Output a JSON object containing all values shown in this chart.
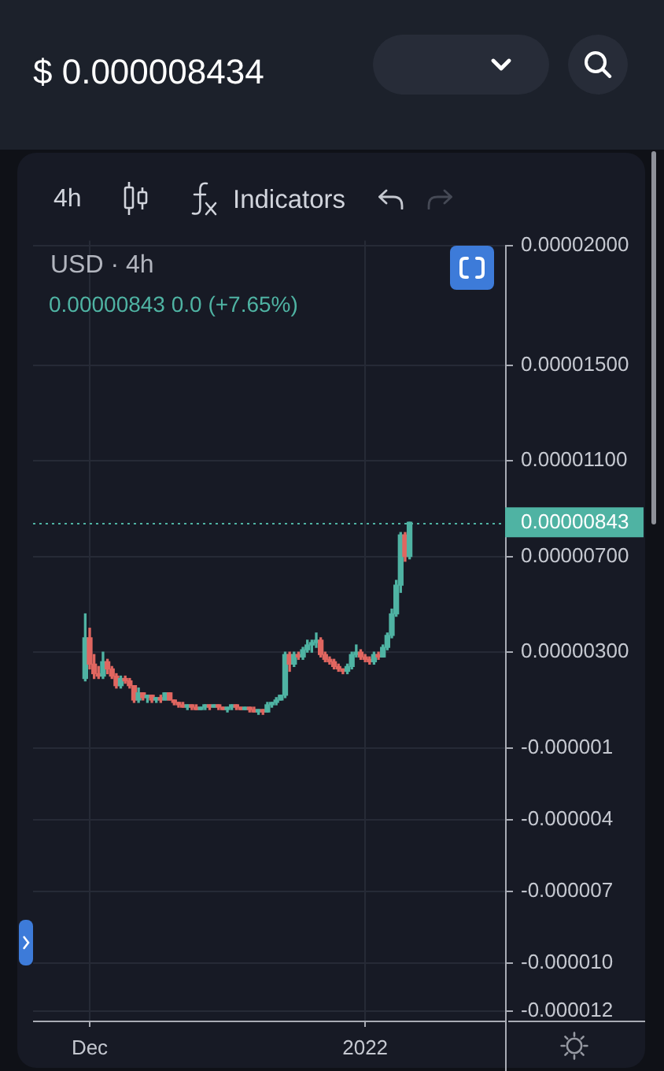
{
  "chart_data": {
    "type": "candlestick",
    "title": "$ 0.000008434",
    "subtitle": "USD · 4h",
    "annotations": [
      "4h",
      "Indicators",
      "0.00000843 0.0 (+7.65%)"
    ],
    "x": [
      "2021-11-30T12:00",
      "2021-12-01T00:00",
      "2021-12-01T12:00",
      "2021-12-02T00:00",
      "2021-12-02T12:00",
      "2021-12-03T00:00",
      "2021-12-03T12:00",
      "2021-12-04T00:00",
      "2021-12-04T12:00",
      "2021-12-05T00:00",
      "2021-12-05T12:00",
      "2021-12-06T00:00",
      "2021-12-06T12:00",
      "2021-12-07T00:00",
      "2021-12-07T12:00",
      "2021-12-08T00:00",
      "2021-12-08T12:00",
      "2021-12-09T00:00",
      "2021-12-09T12:00",
      "2021-12-10T00:00",
      "2021-12-10T12:00",
      "2021-12-11T00:00",
      "2021-12-11T12:00",
      "2021-12-12T00:00",
      "2021-12-12T12:00",
      "2021-12-13T00:00",
      "2021-12-13T12:00",
      "2021-12-14T00:00",
      "2021-12-14T12:00",
      "2021-12-15T00:00",
      "2021-12-15T12:00",
      "2021-12-16T00:00",
      "2021-12-16T12:00",
      "2021-12-17T00:00",
      "2021-12-17T12:00",
      "2021-12-18T00:00",
      "2021-12-18T12:00",
      "2021-12-19T00:00",
      "2021-12-19T12:00",
      "2021-12-20T00:00",
      "2021-12-20T12:00",
      "2021-12-21T00:00",
      "2021-12-21T12:00",
      "2021-12-22T00:00",
      "2021-12-22T12:00",
      "2021-12-23T00:00",
      "2021-12-23T12:00",
      "2021-12-24T00:00",
      "2021-12-24T12:00",
      "2021-12-25T00:00",
      "2021-12-25T12:00",
      "2021-12-26T00:00",
      "2021-12-26T12:00",
      "2021-12-27T00:00",
      "2021-12-27T12:00",
      "2021-12-28T00:00",
      "2021-12-28T12:00",
      "2021-12-29T00:00",
      "2021-12-29T12:00",
      "2021-12-30T00:00",
      "2021-12-30T12:00",
      "2021-12-31T00:00",
      "2021-12-31T12:00",
      "2022-01-01T00:00",
      "2022-01-01T12:00",
      "2022-01-02T00:00",
      "2022-01-02T12:00",
      "2022-01-03T00:00",
      "2022-01-03T12:00",
      "2022-01-04T00:00",
      "2022-01-04T12:00",
      "2022-01-05T00:00",
      "2022-01-05T12:00",
      "2022-01-06T00:00"
    ],
    "ohlc": [
      [
        1.9e-06,
        4.6e-06,
        1.8e-06,
        3.6e-06
      ],
      [
        3.6e-06,
        4e-06,
        2.3e-06,
        2.5e-06
      ],
      [
        2.5e-06,
        2.9e-06,
        1.9e-06,
        2.1e-06
      ],
      [
        2.1e-06,
        2.4e-06,
        1.9e-06,
        2e-06
      ],
      [
        2e-06,
        3e-06,
        1.9e-06,
        2.6e-06
      ],
      [
        2.6e-06,
        2.7e-06,
        2.1e-06,
        2.3e-06
      ],
      [
        2.3e-06,
        2.4e-06,
        1.9e-06,
        2e-06
      ],
      [
        2e-06,
        2.1e-06,
        1.5e-06,
        1.6e-06
      ],
      [
        1.6e-06,
        2e-06,
        1.5e-06,
        1.9e-06
      ],
      [
        1.9e-06,
        2e-06,
        1.7e-06,
        1.8e-06
      ],
      [
        1.8e-06,
        1.9e-06,
        1.5e-06,
        1.6e-06
      ],
      [
        1.6e-06,
        1.6e-06,
        9e-07,
        1e-06
      ],
      [
        1e-06,
        1.5e-06,
        9e-07,
        1.3e-06
      ],
      [
        1.3e-06,
        1.3e-06,
        1e-06,
        1.1e-06
      ],
      [
        1.1e-06,
        1.2e-06,
        9e-07,
        1.2e-06
      ],
      [
        1.2e-06,
        1.2e-06,
        9e-07,
        1e-06
      ],
      [
        1e-06,
        1.1e-06,
        9e-07,
        1.1e-06
      ],
      [
        1.1e-06,
        1.2e-06,
        9e-07,
        1e-06
      ],
      [
        1e-06,
        1.3e-06,
        1e-06,
        1.3e-06
      ],
      [
        1.3e-06,
        1.3e-06,
        1e-06,
        1e-06
      ],
      [
        1e-06,
        1e-06,
        8e-07,
        9e-07
      ],
      [
        9e-07,
        9e-07,
        7e-07,
        8e-07
      ],
      [
        8e-07,
        9e-07,
        7e-07,
        7e-07
      ],
      [
        7e-07,
        8e-07,
        6e-07,
        8e-07
      ],
      [
        8e-07,
        8e-07,
        6e-07,
        7e-07
      ],
      [
        7e-07,
        8e-07,
        6e-07,
        6e-07
      ],
      [
        6e-07,
        7e-07,
        6e-07,
        7e-07
      ],
      [
        7e-07,
        8e-07,
        6e-07,
        8e-07
      ],
      [
        8e-07,
        8e-07,
        6e-07,
        7e-07
      ],
      [
        7e-07,
        8e-07,
        7e-07,
        8e-07
      ],
      [
        8e-07,
        8e-07,
        6e-07,
        7e-07
      ],
      [
        7e-07,
        7e-07,
        6e-07,
        6e-07
      ],
      [
        6e-07,
        7e-07,
        5e-07,
        7e-07
      ],
      [
        7e-07,
        8e-07,
        6e-07,
        8e-07
      ],
      [
        8e-07,
        8e-07,
        6e-07,
        7e-07
      ],
      [
        7e-07,
        7e-07,
        6e-07,
        6e-07
      ],
      [
        6e-07,
        7e-07,
        6e-07,
        7e-07
      ],
      [
        7e-07,
        7e-07,
        5e-07,
        6e-07
      ],
      [
        6e-07,
        7e-07,
        5e-07,
        5e-07
      ],
      [
        5e-07,
        6e-07,
        4e-07,
        6e-07
      ],
      [
        6e-07,
        6e-07,
        4e-07,
        5e-07
      ],
      [
        5e-07,
        9e-07,
        5e-07,
        8e-07
      ],
      [
        8e-07,
        9e-07,
        7e-07,
        9e-07
      ],
      [
        9e-07,
        1.1e-06,
        8e-07,
        1e-06
      ],
      [
        1e-06,
        1.2e-06,
        1e-06,
        1.2e-06
      ],
      [
        1.2e-06,
        3e-06,
        1.1e-06,
        2.9e-06
      ],
      [
        2.9e-06,
        3e-06,
        2.2e-06,
        2.5e-06
      ],
      [
        2.5e-06,
        3e-06,
        2.4e-06,
        2.9e-06
      ],
      [
        2.9e-06,
        3e-06,
        2.7e-06,
        2.8e-06
      ],
      [
        2.8e-06,
        3.2e-06,
        2.7e-06,
        3.1e-06
      ],
      [
        3.1e-06,
        3.5e-06,
        3e-06,
        3.3e-06
      ],
      [
        3.3e-06,
        3.5e-06,
        3e-06,
        3.4e-06
      ],
      [
        3.4e-06,
        3.8e-06,
        3.2e-06,
        3.5e-06
      ],
      [
        3.5e-06,
        3.6e-06,
        2.8e-06,
        2.9e-06
      ],
      [
        2.9e-06,
        3e-06,
        2.6e-06,
        2.7e-06
      ],
      [
        2.7e-06,
        2.8e-06,
        2.5e-06,
        2.6e-06
      ],
      [
        2.6e-06,
        2.7e-06,
        2.3e-06,
        2.4e-06
      ],
      [
        2.4e-06,
        2.5e-06,
        2.2e-06,
        2.3e-06
      ],
      [
        2.3e-06,
        2.3e-06,
        2.1e-06,
        2.2e-06
      ],
      [
        2.2e-06,
        2.5e-06,
        2.1e-06,
        2.4e-06
      ],
      [
        2.4e-06,
        3e-06,
        2.3e-06,
        2.9e-06
      ],
      [
        2.9e-06,
        3.3e-06,
        2.8e-06,
        3e-06
      ],
      [
        3e-06,
        3.1e-06,
        2.7e-06,
        2.8e-06
      ],
      [
        2.8e-06,
        2.9e-06,
        2.6e-06,
        2.7e-06
      ],
      [
        2.7e-06,
        2.8e-06,
        2.5e-06,
        2.6e-06
      ],
      [
        2.6e-06,
        3e-06,
        2.5e-06,
        2.9e-06
      ],
      [
        2.9e-06,
        3e-06,
        2.7e-06,
        2.8e-06
      ],
      [
        2.8e-06,
        3.3e-06,
        2.8e-06,
        3.2e-06
      ],
      [
        3.2e-06,
        3.8e-06,
        3.1e-06,
        3.7e-06
      ],
      [
        3.7e-06,
        4.8e-06,
        3.6e-06,
        4.6e-06
      ],
      [
        4.6e-06,
        6e-06,
        4.5e-06,
        5.8e-06
      ],
      [
        5.8e-06,
        8e-06,
        5.5e-06,
        7.9e-06
      ],
      [
        7.9e-06,
        8e-06,
        6.8e-06,
        7e-06
      ],
      [
        7e-06,
        8.43e-06,
        6.9e-06,
        8.43e-06
      ]
    ],
    "colors": [
      "#4fb3a3",
      "#e06660",
      "#e06660",
      "#e06660",
      "#4fb3a3",
      "#e06660",
      "#e06660",
      "#e06660",
      "#4fb3a3",
      "#e06660",
      "#e06660",
      "#e06660",
      "#4fb3a3",
      "#e06660",
      "#4fb3a3",
      "#e06660",
      "#4fb3a3",
      "#e06660",
      "#4fb3a3",
      "#e06660",
      "#e06660",
      "#e06660",
      "#e06660",
      "#4fb3a3",
      "#e06660",
      "#e06660",
      "#4fb3a3",
      "#4fb3a3",
      "#e06660",
      "#4fb3a3",
      "#e06660",
      "#e06660",
      "#4fb3a3",
      "#4fb3a3",
      "#e06660",
      "#e06660",
      "#4fb3a3",
      "#e06660",
      "#e06660",
      "#4fb3a3",
      "#e06660",
      "#4fb3a3",
      "#4fb3a3",
      "#4fb3a3",
      "#4fb3a3",
      "#4fb3a3",
      "#e06660",
      "#4fb3a3",
      "#e06660",
      "#4fb3a3",
      "#4fb3a3",
      "#4fb3a3",
      "#4fb3a3",
      "#e06660",
      "#e06660",
      "#e06660",
      "#e06660",
      "#e06660",
      "#e06660",
      "#4fb3a3",
      "#4fb3a3",
      "#4fb3a3",
      "#e06660",
      "#e06660",
      "#e06660",
      "#4fb3a3",
      "#e06660",
      "#4fb3a3",
      "#4fb3a3",
      "#4fb3a3",
      "#4fb3a3",
      "#4fb3a3",
      "#e06660",
      "#4fb3a3"
    ],
    "xlim": [
      "2021-11-24T15:00",
      "2022-01-16T18:00"
    ],
    "xticks": [
      {
        "value": "2021-12-01",
        "label": "Dec"
      },
      {
        "value": "2022-01-01",
        "label": "2022"
      }
    ],
    "ylim": [
      -1.24e-05,
      2.02e-05
    ],
    "yticks": [
      {
        "value": 2e-05,
        "label": "0.00002000"
      },
      {
        "value": 1.5e-05,
        "label": "0.00001500"
      },
      {
        "value": 1.1e-05,
        "label": "0.00001100"
      },
      {
        "value": 7e-06,
        "label": "0.00000700"
      },
      {
        "value": 3e-06,
        "label": "0.00000300"
      },
      {
        "value": -1e-06,
        "label": "-0.000001"
      },
      {
        "value": -4e-06,
        "label": "-0.000004"
      },
      {
        "value": -7e-06,
        "label": "-0.000007"
      },
      {
        "value": -1e-05,
        "label": "-0.000010"
      },
      {
        "value": -1.2e-05,
        "label": "-0.000012"
      }
    ],
    "grid": true,
    "ref_lines": [
      {
        "axis": "y",
        "value": 8.43e-06,
        "label": "0.00000843",
        "color": "#4fb3a3",
        "line_style": "dotted"
      }
    ]
  }
}
